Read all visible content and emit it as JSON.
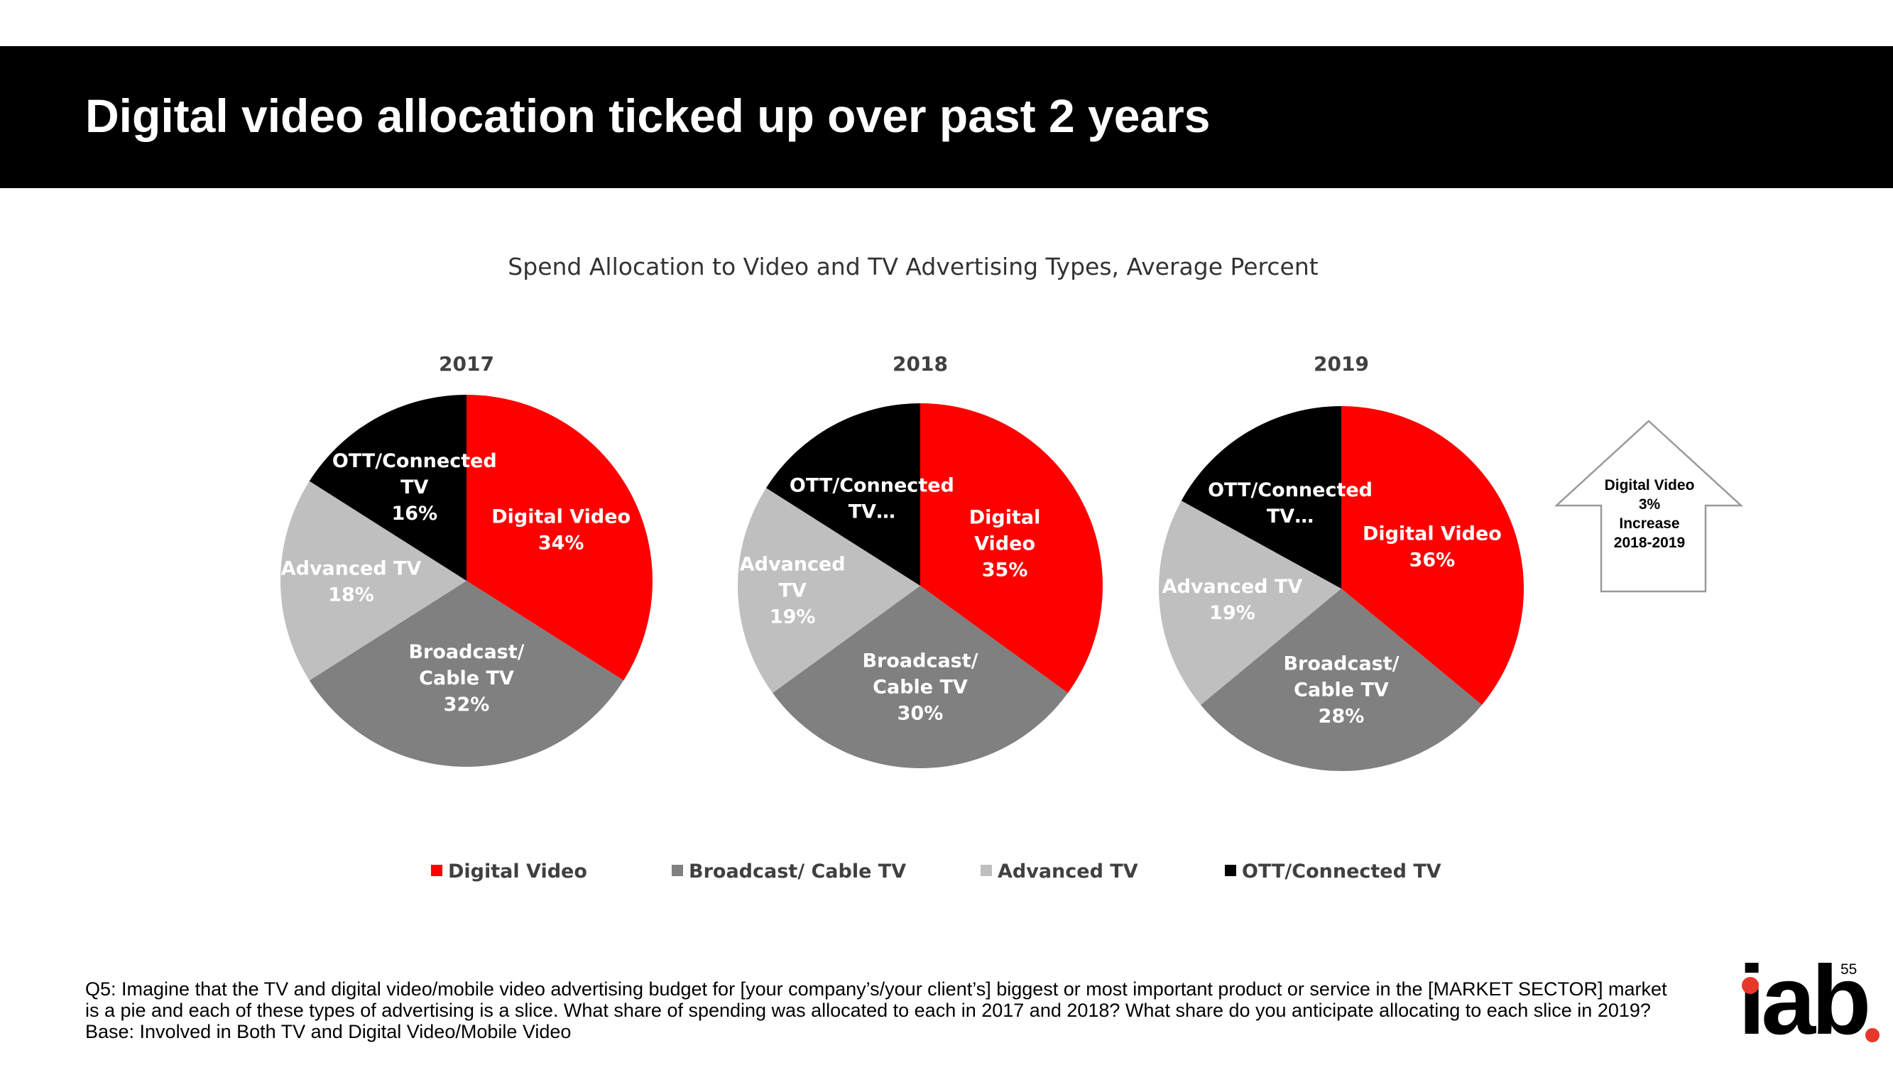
{
  "slide": {
    "title": "Digital video allocation ticked up over past 2 years",
    "page_number": "55",
    "logo_text": "iab",
    "footnote": [
      "Q5: Imagine that the TV and digital video/mobile video advertising budget for [your company’s/your client’s] biggest or most important product or service in the [MARKET SECTOR] market",
      "is a pie and each of these types of advertising is a slice.  What share of spending was allocated to each in 2017 and 2018?  What share do you anticipate allocating to each slice in 2019?",
      "Base: Involved in Both TV and Digital Video/Mobile Video"
    ]
  },
  "callout": {
    "lines": [
      "Digital Video",
      "3%",
      "Increase",
      "2018-2019"
    ]
  },
  "chart_data": {
    "type": "pie",
    "title": "Spend Allocation to Video and TV Advertising Types, Average Percent",
    "categories": [
      "Digital Video",
      "Broadcast/ Cable TV",
      "Advanced TV",
      "OTT/Connected TV"
    ],
    "colors": [
      "#ff0000",
      "#808080",
      "#bfbfbf",
      "#000000"
    ],
    "label_colors": [
      "#ffffff",
      "#ffffff",
      "#ffffff",
      "#ffffff"
    ],
    "legend": [
      "Digital Video",
      "Broadcast/ Cable TV",
      "Advanced TV",
      "OTT/Connected TV"
    ],
    "legend_position": "bottom",
    "pies": [
      {
        "year": "2017",
        "values": [
          34,
          32,
          18,
          16
        ],
        "labels": [
          [
            "Digital Video",
            "34%"
          ],
          [
            "Broadcast/",
            "Cable TV",
            "32%"
          ],
          [
            "Advanced TV",
            "18%"
          ],
          [
            "OTT/Connected",
            "TV",
            "16%"
          ]
        ]
      },
      {
        "year": "2018",
        "values": [
          35,
          30,
          19,
          16
        ],
        "labels": [
          [
            "Digital",
            "Video",
            "35%"
          ],
          [
            "Broadcast/",
            "Cable TV",
            "30%"
          ],
          [
            "Advanced",
            "TV",
            "19%"
          ],
          [
            "OTT/Connected",
            "TV…"
          ]
        ]
      },
      {
        "year": "2019",
        "values": [
          36,
          28,
          19,
          17
        ],
        "labels": [
          [
            "Digital Video",
            "36%"
          ],
          [
            "Broadcast/",
            "Cable TV",
            "28%"
          ],
          [
            "Advanced TV",
            "19%"
          ],
          [
            "OTT/Connected",
            "TV…"
          ]
        ]
      }
    ]
  }
}
